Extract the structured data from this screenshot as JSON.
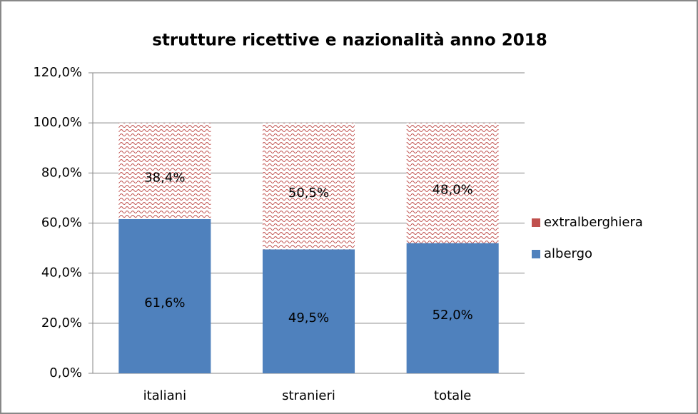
{
  "chart_data": {
    "type": "stacked_bar",
    "title": "strutture ricettive e nazionalità anno 2018",
    "categories": [
      "italiani",
      "stranieri",
      "totale"
    ],
    "series": [
      {
        "name": "albergo",
        "color": "#4f81bd",
        "values": [
          61.6,
          49.5,
          52.0
        ],
        "value_labels": [
          "61,6%",
          "49,5%",
          "52,0%"
        ]
      },
      {
        "name": "extralberghiera",
        "color": "#c0504d",
        "fill_pattern": "wave",
        "values": [
          38.4,
          50.5,
          48.0
        ],
        "value_labels": [
          "38,4%",
          "50,5%",
          "48,0%"
        ]
      }
    ],
    "ylim": [
      0,
      120
    ],
    "yticks": [
      {
        "value": 0,
        "label": "0,0%"
      },
      {
        "value": 20,
        "label": "20,0%"
      },
      {
        "value": 40,
        "label": "40,0%"
      },
      {
        "value": 60,
        "label": "60,0%"
      },
      {
        "value": 80,
        "label": "80,0%"
      },
      {
        "value": 100,
        "label": "100,0%"
      },
      {
        "value": 120,
        "label": "120,0%"
      }
    ],
    "grid": true,
    "legend": "right"
  }
}
